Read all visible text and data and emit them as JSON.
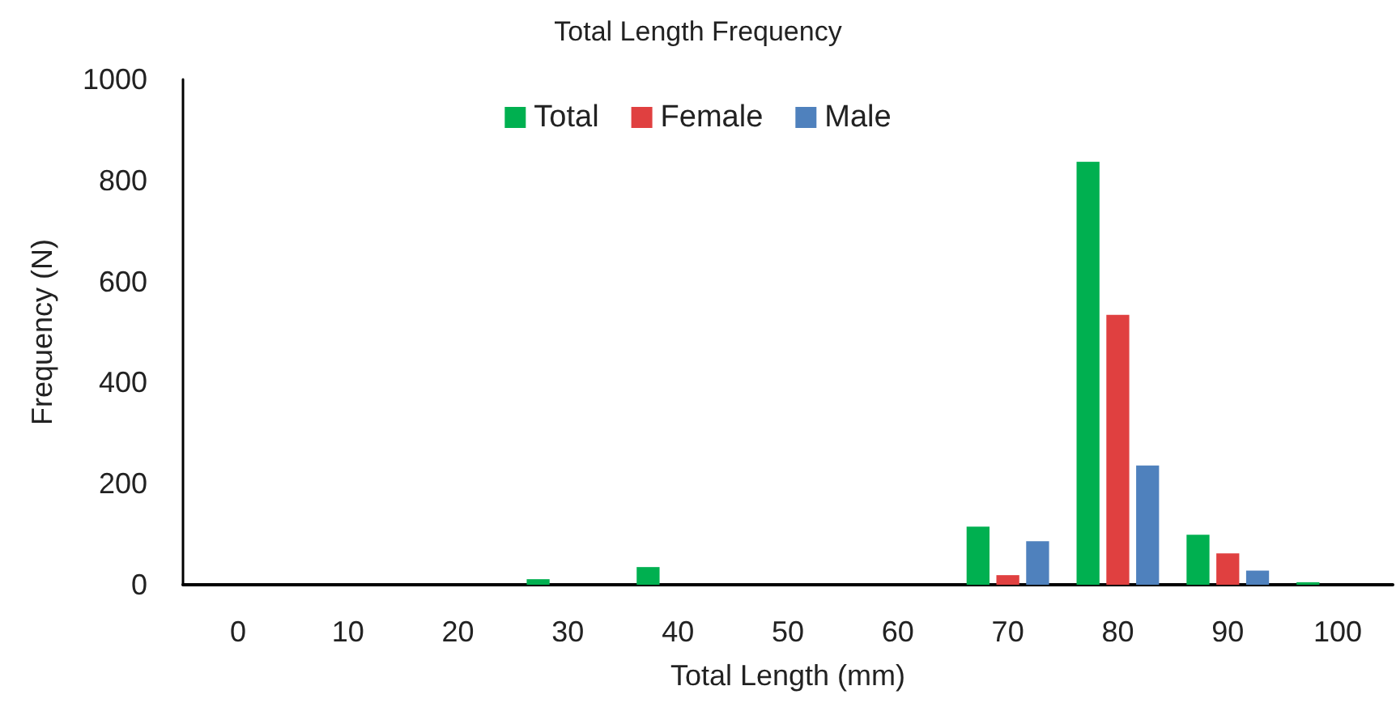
{
  "chart_data": {
    "type": "bar",
    "title": "Total Length Frequency",
    "xlabel": "Total Length (mm)",
    "ylabel": "Frequency (N)",
    "categories": [
      "0",
      "10",
      "20",
      "30",
      "40",
      "50",
      "60",
      "70",
      "80",
      "90",
      "100"
    ],
    "series": [
      {
        "name": "Total",
        "color": "#00b050",
        "values": [
          0,
          0,
          0,
          11,
          35,
          0,
          0,
          115,
          837,
          99,
          5
        ]
      },
      {
        "name": "Female",
        "color": "#e04040",
        "values": [
          0,
          0,
          0,
          0,
          0,
          0,
          0,
          19,
          534,
          62,
          0
        ]
      },
      {
        "name": "Male",
        "color": "#4f81bd",
        "values": [
          0,
          0,
          0,
          0,
          0,
          0,
          0,
          86,
          236,
          28,
          0
        ]
      }
    ],
    "ylim": [
      0,
      1000
    ],
    "yticks": [
      0,
      200,
      400,
      600,
      800,
      1000
    ],
    "grid": false,
    "legend": "top"
  }
}
